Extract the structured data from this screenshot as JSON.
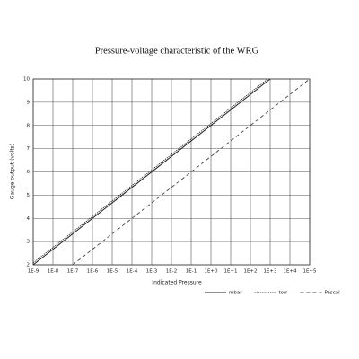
{
  "chart_data": {
    "type": "line",
    "title": "Pressure-voltage characteristic of the WRG",
    "x_label": "Indicated Pressure",
    "y_label": "Gauge output (volts)",
    "x_scale": "log",
    "grid": true,
    "legend": "bottom-right",
    "xlim": [
      1e-09,
      100000.0
    ],
    "ylim": [
      2,
      10
    ],
    "xticks": [
      {
        "value": 1e-09,
        "label": "1E-9"
      },
      {
        "value": 1e-08,
        "label": "1E-8"
      },
      {
        "value": 1e-07,
        "label": "1E-7"
      },
      {
        "value": 1e-06,
        "label": "1E-6"
      },
      {
        "value": 1e-05,
        "label": "1E-5"
      },
      {
        "value": 0.0001,
        "label": "1E-4"
      },
      {
        "value": 0.001,
        "label": "1E-3"
      },
      {
        "value": 0.01,
        "label": "1E-2"
      },
      {
        "value": 0.1,
        "label": "1E-1"
      },
      {
        "value": 1,
        "label": "1E+0"
      },
      {
        "value": 10,
        "label": "1E+1"
      },
      {
        "value": 100,
        "label": "1E+2"
      },
      {
        "value": 1000,
        "label": "1E+3"
      },
      {
        "value": 10000,
        "label": "1E+4"
      },
      {
        "value": 100000,
        "label": "1E+5"
      }
    ],
    "yticks": [
      2,
      3,
      4,
      5,
      6,
      7,
      8,
      9,
      10
    ],
    "series": [
      {
        "name": "mbar",
        "color": "#222222",
        "style": "solid",
        "x": [
          1e-09,
          1000
        ],
        "values": [
          2,
          10
        ]
      },
      {
        "name": "torr",
        "color": "#222222",
        "style": "dotted",
        "x": [
          1e-09,
          750
        ],
        "values": [
          2.08,
          10
        ]
      },
      {
        "name": "Pascal",
        "color": "#444444",
        "style": "dashed",
        "x": [
          1e-07,
          100000
        ],
        "values": [
          2,
          10
        ]
      }
    ]
  }
}
